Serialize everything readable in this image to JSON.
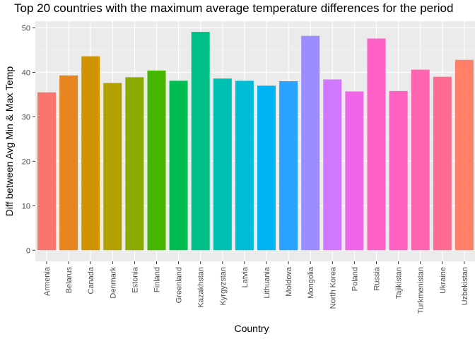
{
  "chart_data": {
    "type": "bar",
    "title": "Top 20 countries with the maximum average temperature differences for the period",
    "xlabel": "Country",
    "ylabel": "Diff between Avg Min & Max Temp",
    "ylim": [
      -2.5,
      51.5
    ],
    "yticks": [
      0,
      10,
      20,
      30,
      40,
      50
    ],
    "grid": true,
    "legend": "none",
    "categories": [
      "Armenia",
      "Belarus",
      "Canada",
      "Denmark",
      "Estonia",
      "Finland",
      "Greenland",
      "Kazakhstan",
      "Kyrgyzstan",
      "Latvia",
      "Lithuania",
      "Moldova",
      "Mongolia",
      "North Korea",
      "Poland",
      "Russia",
      "Tajikistan",
      "Turkmenistan",
      "Ukraine",
      "Uzbekistan"
    ],
    "values": [
      35.5,
      39.3,
      43.6,
      37.6,
      38.9,
      40.4,
      38.1,
      49.1,
      38.6,
      38.1,
      37.0,
      38.0,
      48.2,
      38.4,
      35.7,
      47.6,
      35.8,
      40.6,
      39.0,
      42.8
    ],
    "colors": [
      "#F8766D",
      "#E7851E",
      "#D09400",
      "#B2A100",
      "#89AC00",
      "#45B500",
      "#00BC51",
      "#00C087",
      "#00C0B2",
      "#00BCD6",
      "#00B3F2",
      "#29A3FF",
      "#9C8DFF",
      "#D277FF",
      "#F166E8",
      "#FF61C7",
      "#FF61C3",
      "#FF64B0",
      "#FF6C91",
      "#FF7F68"
    ]
  }
}
